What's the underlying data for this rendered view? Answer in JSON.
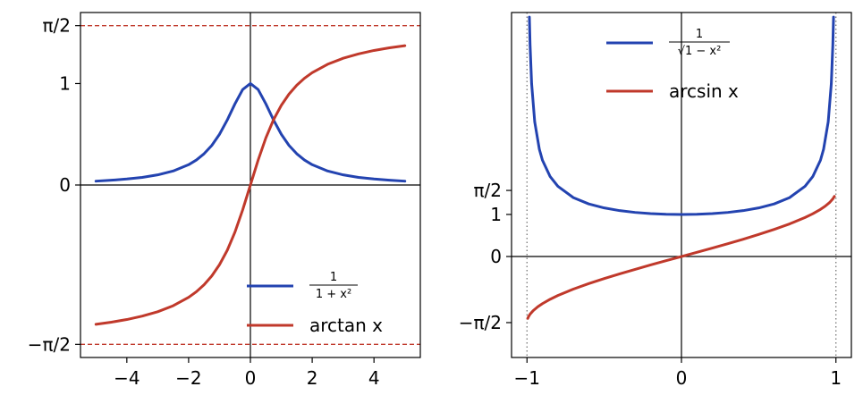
{
  "chart_data": [
    {
      "type": "line",
      "xlim": [
        -5.5,
        5.5
      ],
      "ylim": [
        -1.7,
        1.7
      ],
      "xticks": [
        {
          "value": -4,
          "label": "−4"
        },
        {
          "value": -2,
          "label": "−2"
        },
        {
          "value": 0,
          "label": "0"
        },
        {
          "value": 2,
          "label": "2"
        },
        {
          "value": 4,
          "label": "4"
        }
      ],
      "yticks": [
        {
          "value": -1.5708,
          "label": "−π/2"
        },
        {
          "value": 0,
          "label": "0"
        },
        {
          "value": 1,
          "label": "1"
        },
        {
          "value": 1.5708,
          "label": "π/2"
        }
      ],
      "asymptotes": [
        1.5708,
        -1.5708
      ],
      "legend_position": "lower-right",
      "series": [
        {
          "name": "1/(1+x²)",
          "legend_numerator": "1",
          "legend_denominator": "1 + x²",
          "color": "#2343b0",
          "x": [
            -5,
            -4.5,
            -4,
            -3.5,
            -3,
            -2.5,
            -2,
            -1.75,
            -1.5,
            -1.25,
            -1,
            -0.75,
            -0.5,
            -0.25,
            0,
            0.25,
            0.5,
            0.75,
            1,
            1.25,
            1.5,
            1.75,
            2,
            2.5,
            3,
            3.5,
            4,
            4.5,
            5
          ],
          "y": [
            0.038,
            0.047,
            0.059,
            0.075,
            0.1,
            0.138,
            0.2,
            0.246,
            0.308,
            0.39,
            0.5,
            0.64,
            0.8,
            0.941,
            1.0,
            0.941,
            0.8,
            0.64,
            0.5,
            0.39,
            0.308,
            0.246,
            0.2,
            0.138,
            0.1,
            0.075,
            0.059,
            0.047,
            0.038
          ]
        },
        {
          "name": "arctan x",
          "legend_label": "arctan x",
          "color": "#c0392b",
          "x": [
            -5,
            -4.5,
            -4,
            -3.5,
            -3,
            -2.5,
            -2,
            -1.75,
            -1.5,
            -1.25,
            -1,
            -0.75,
            -0.5,
            -0.25,
            0,
            0.25,
            0.5,
            0.75,
            1,
            1.25,
            1.5,
            1.75,
            2,
            2.5,
            3,
            3.5,
            4,
            4.5,
            5
          ],
          "y": [
            -1.373,
            -1.352,
            -1.326,
            -1.292,
            -1.249,
            -1.19,
            -1.107,
            -1.052,
            -0.983,
            -0.896,
            -0.785,
            -0.644,
            -0.464,
            -0.245,
            0,
            0.245,
            0.464,
            0.644,
            0.785,
            0.896,
            0.983,
            1.052,
            1.107,
            1.19,
            1.249,
            1.292,
            1.326,
            1.352,
            1.373
          ]
        }
      ]
    },
    {
      "type": "line",
      "xlim": [
        -1.1,
        1.1
      ],
      "ylim": [
        -2.4,
        5.8
      ],
      "xticks": [
        {
          "value": -1,
          "label": "−1"
        },
        {
          "value": 0,
          "label": "0"
        },
        {
          "value": 1,
          "label": "1"
        }
      ],
      "yticks": [
        {
          "value": -1.5708,
          "label": "−π/2"
        },
        {
          "value": 0,
          "label": "0"
        },
        {
          "value": 1,
          "label": "1"
        },
        {
          "value": 1.5708,
          "label": "π/2"
        }
      ],
      "vlines": [
        -1,
        1
      ],
      "legend_position": "top-center",
      "series": [
        {
          "name": "1/√(1−x²)",
          "legend_numerator": "1",
          "legend_denominator": "√1 − x²",
          "color": "#2343b0",
          "x": [
            -0.9845,
            -0.98,
            -0.97,
            -0.95,
            -0.92,
            -0.9,
            -0.85,
            -0.8,
            -0.7,
            -0.6,
            -0.5,
            -0.4,
            -0.3,
            -0.2,
            -0.1,
            0,
            0.1,
            0.2,
            0.3,
            0.4,
            0.5,
            0.6,
            0.7,
            0.8,
            0.85,
            0.9,
            0.92,
            0.95,
            0.97,
            0.98,
            0.9845
          ],
          "y": [
            5.69,
            5.03,
            4.11,
            3.2,
            2.55,
            2.29,
            1.9,
            1.67,
            1.4,
            1.25,
            1.155,
            1.091,
            1.048,
            1.021,
            1.005,
            1.0,
            1.005,
            1.021,
            1.048,
            1.091,
            1.155,
            1.25,
            1.4,
            1.67,
            1.9,
            2.29,
            2.55,
            3.2,
            4.11,
            5.03,
            5.69
          ]
        },
        {
          "name": "arcsin x",
          "legend_label": "arcsin x",
          "color": "#c0392b",
          "x": [
            -0.995,
            -0.99,
            -0.98,
            -0.96,
            -0.93,
            -0.9,
            -0.85,
            -0.8,
            -0.7,
            -0.6,
            -0.5,
            -0.4,
            -0.3,
            -0.2,
            -0.1,
            0,
            0.1,
            0.2,
            0.3,
            0.4,
            0.5,
            0.6,
            0.7,
            0.8,
            0.85,
            0.9,
            0.93,
            0.96,
            0.98,
            0.99
          ],
          "y": [
            -1.471,
            -1.429,
            -1.37,
            -1.287,
            -1.195,
            -1.12,
            -1.016,
            -0.927,
            -0.775,
            -0.644,
            -0.524,
            -0.412,
            -0.305,
            -0.201,
            -0.1,
            0,
            0.1,
            0.201,
            0.305,
            0.412,
            0.524,
            0.644,
            0.775,
            0.927,
            1.016,
            1.12,
            1.195,
            1.287,
            1.37,
            1.429
          ]
        }
      ]
    }
  ]
}
